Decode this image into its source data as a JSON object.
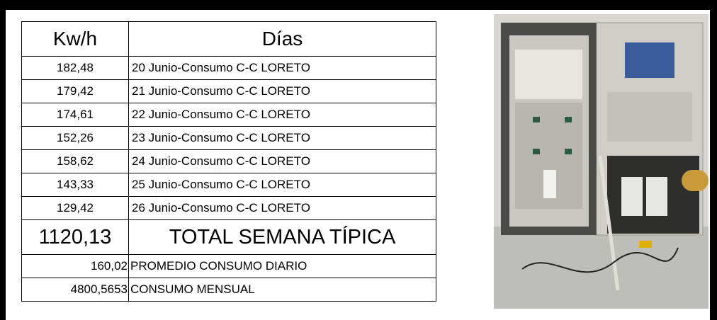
{
  "table": {
    "header": [
      "Kw/h",
      "Días"
    ],
    "rows": [
      [
        "182,48",
        "20 Junio-Consumo C-C LORETO"
      ],
      [
        "179,42",
        "21 Junio-Consumo C-C LORETO"
      ],
      [
        "174,61",
        "22 Junio-Consumo C-C LORETO"
      ],
      [
        "152,26",
        "23 Junio-Consumo C-C LORETO"
      ],
      [
        "158,62",
        "24 Junio-Consumo C-C LORETO"
      ],
      [
        "143,33",
        "25 Junio-Consumo C-C LORETO"
      ],
      [
        "129,42",
        "26 Junio-Consumo C-C LORETO"
      ]
    ],
    "total": [
      "1120,13",
      "TOTAL SEMANA TÍPICA"
    ],
    "summary": [
      [
        "160,02",
        "PROMEDIO CONSUMO DIARIO"
      ],
      [
        "4800,5653",
        "CONSUMO MENSUAL"
      ]
    ]
  }
}
